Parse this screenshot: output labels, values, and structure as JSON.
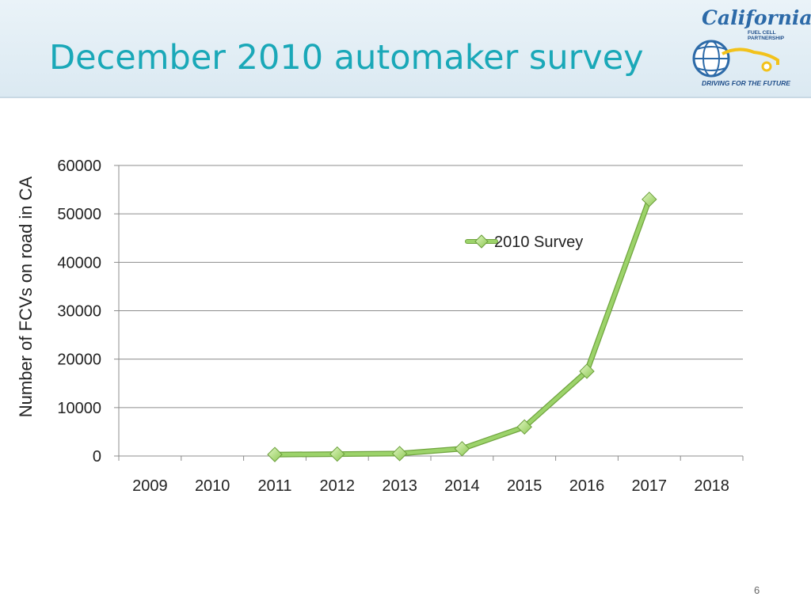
{
  "slide": {
    "title": "December 2010 automaker survey",
    "page_number": "6"
  },
  "logo": {
    "wordmark": "California",
    "subtitle": "FUEL CELL PARTNERSHIP",
    "tagline": "DRIVING FOR THE FUTURE",
    "colors": {
      "primary": "#2c6aa8",
      "accent": "#f2c21b"
    }
  },
  "colors": {
    "title": "#1aa8b8",
    "series_line": "#9cd36a",
    "series_line_shadow": "#6fa43e",
    "marker_fill": "#a8df6e",
    "marker_stroke": "#6a9e3a",
    "gridline": "#8c8c8c"
  },
  "chart_data": {
    "type": "line",
    "ylabel": "Number of FCVs on road in CA",
    "xlabel": "",
    "categories": [
      "2009",
      "2010",
      "2011",
      "2012",
      "2013",
      "2014",
      "2015",
      "2016",
      "2017",
      "2018"
    ],
    "yticks": [
      0,
      10000,
      20000,
      30000,
      40000,
      50000,
      60000
    ],
    "ylim": [
      0,
      60000
    ],
    "grid": true,
    "legend": "top-right",
    "series": [
      {
        "name": "2010 Survey",
        "values": [
          null,
          null,
          300,
          400,
          500,
          1500,
          6000,
          17500,
          53000,
          null
        ]
      }
    ]
  }
}
